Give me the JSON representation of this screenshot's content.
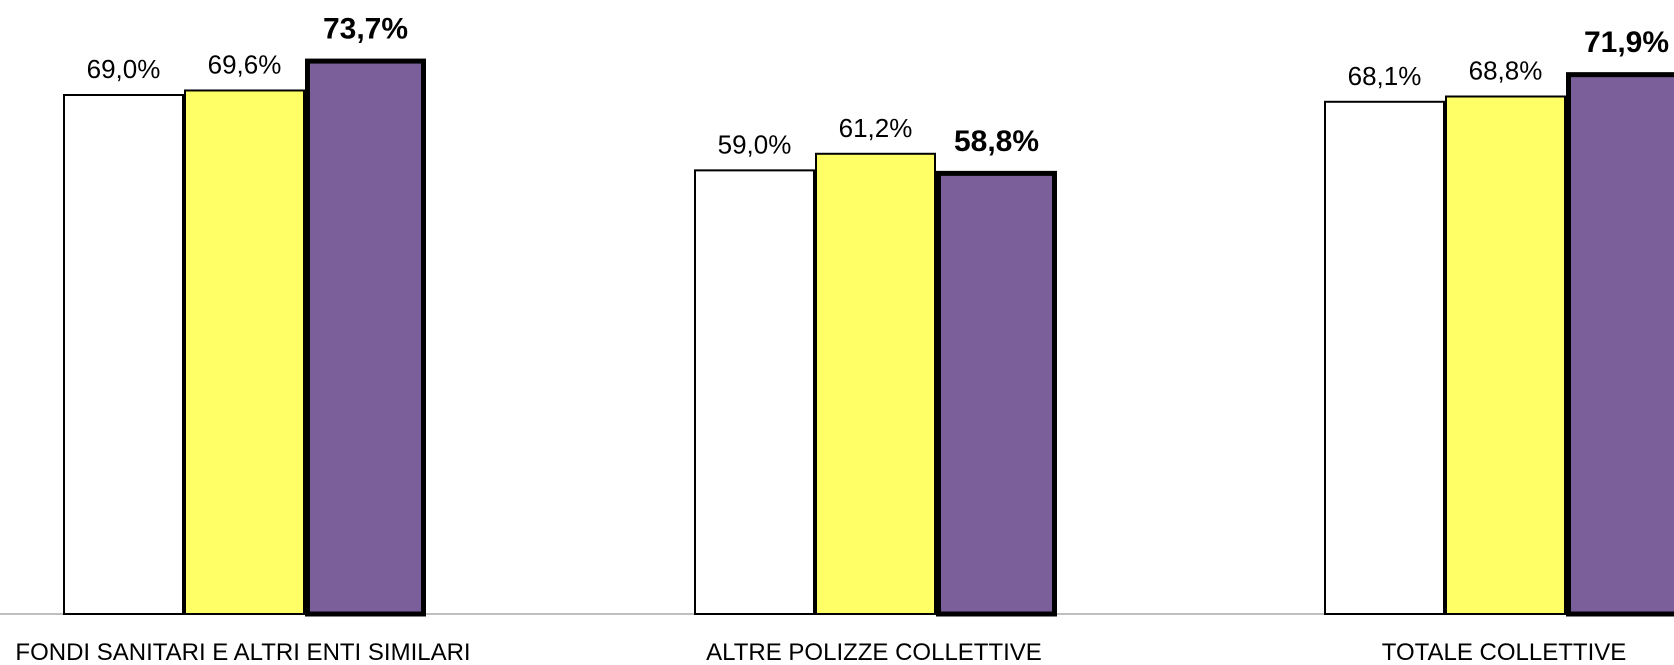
{
  "chart_data": {
    "type": "bar",
    "categories": [
      "FONDI SANITARI E ALTRI ENTI SIMILARI",
      "ALTRE POLIZZE COLLETTIVE",
      "TOTALE COLLETTIVE"
    ],
    "series": [
      {
        "values": [
          69.0,
          59.0,
          68.1
        ],
        "labels": [
          "69,0%",
          "59,0%",
          "68,1%"
        ],
        "color": "#ffffff",
        "emphasis": false
      },
      {
        "values": [
          69.6,
          61.2,
          68.8
        ],
        "labels": [
          "69,6%",
          "61,2%",
          "68,8%"
        ],
        "color": "#ffff66",
        "emphasis": false
      },
      {
        "values": [
          73.7,
          58.8,
          71.9
        ],
        "labels": [
          "73,7%",
          "58,8%",
          "71,9%"
        ],
        "color": "#7b5f9b",
        "emphasis": true
      }
    ],
    "ylim": [
      0,
      75
    ],
    "grid": false,
    "legend": "none",
    "axis_color": "#bfbfbf"
  }
}
